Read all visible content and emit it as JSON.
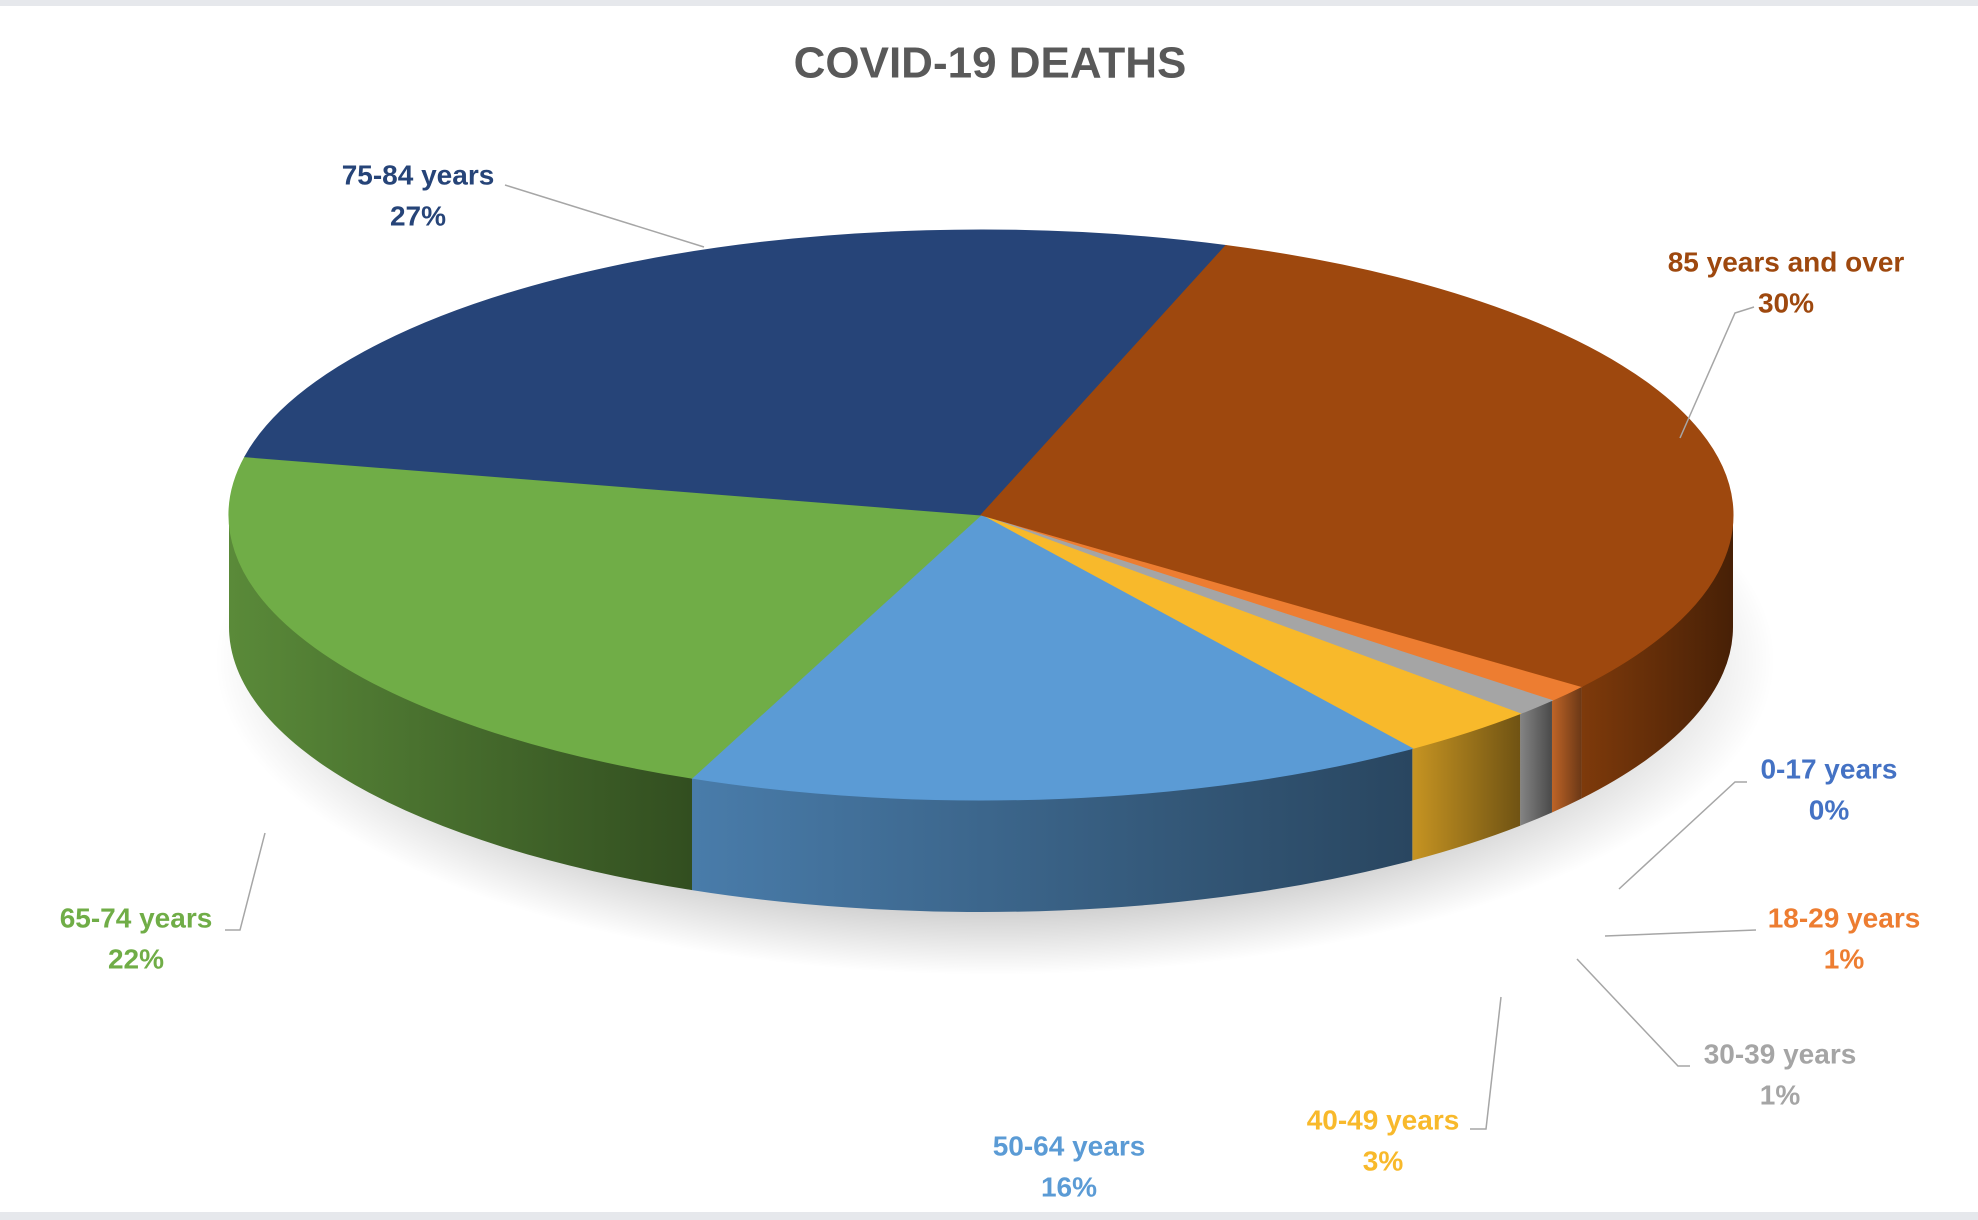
{
  "chart_data": {
    "type": "pie",
    "title": "COVID-19 DEATHS",
    "categories": [
      "0-17 years",
      "18-29 years",
      "30-39 years",
      "40-49 years",
      "50-64 years",
      "65-74 years",
      "75-84 years",
      "85 years and over"
    ],
    "values": [
      0,
      1,
      1,
      3,
      16,
      22,
      27,
      30
    ],
    "value_labels": [
      "0%",
      "1%",
      "1%",
      "3%",
      "16%",
      "22%",
      "27%",
      "30%"
    ],
    "colors": [
      "#4472c4",
      "#ed7d31",
      "#a5a5a5",
      "#f8b92b",
      "#5b9bd5",
      "#70ad47",
      "#264478",
      "#9e480e"
    ]
  }
}
